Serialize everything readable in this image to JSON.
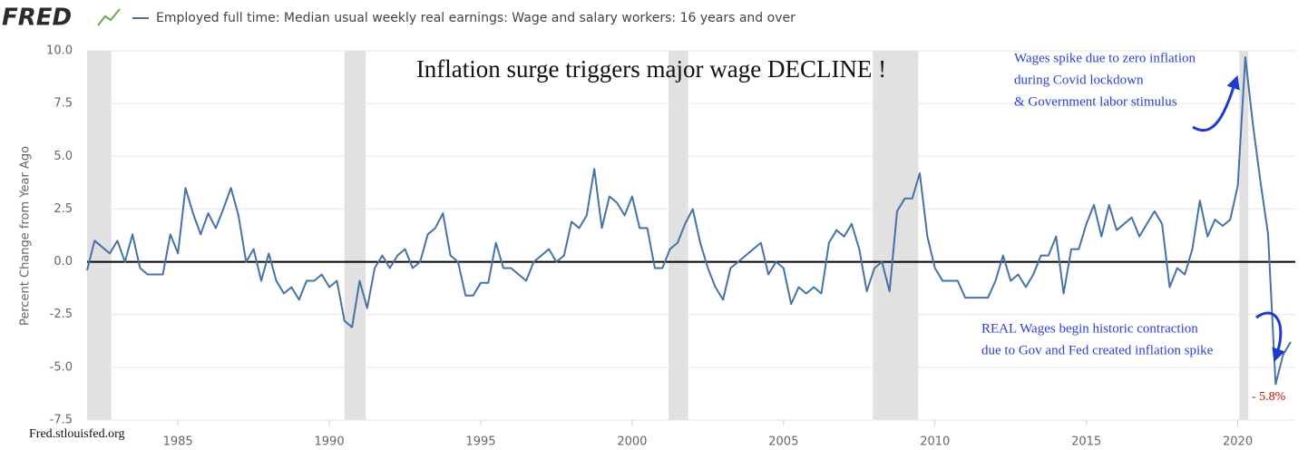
{
  "chart_data": {
    "type": "line",
    "logo": "FRED",
    "title": "Inflation surge triggers major wage DECLINE !",
    "y_label": "Percent Change from Year Ago",
    "source": "Fred.stlouisfed.org",
    "annotations": [
      "Wages spike due to zero inflation",
      "during Covid lockdown",
      "& Government labor stimulus",
      "REAL Wages begin historic contraction",
      "due to Gov and Fed created inflation spike",
      "- 5.8%"
    ],
    "xlim": [
      1982,
      2021.9
    ],
    "ylim": [
      -7.5,
      10
    ],
    "xticks": [
      1985,
      1990,
      1995,
      2000,
      2005,
      2010,
      2015,
      2020
    ],
    "yticks": [
      {
        "value": 10,
        "label": "10.0"
      },
      {
        "value": 7.5,
        "label": "7.5"
      },
      {
        "value": 5,
        "label": "5.0"
      },
      {
        "value": 2.5,
        "label": "2.5"
      },
      {
        "value": 0,
        "label": "0.0"
      },
      {
        "value": -2.5,
        "label": "-2.5"
      },
      {
        "value": -5,
        "label": "-5.0"
      },
      {
        "value": -7.5,
        "label": "-7.5"
      }
    ],
    "grid": true,
    "hline": 0,
    "recessions": [
      [
        1982,
        1982.8
      ],
      [
        1990.5,
        1991.2
      ],
      [
        2001.2,
        2001.85
      ],
      [
        2007.95,
        2009.45
      ],
      [
        2020.05,
        2020.35
      ]
    ],
    "recession_color": "#e1e1e1",
    "x": [
      1982,
      1982.25,
      1982.5,
      1982.75,
      1983,
      1983.25,
      1983.5,
      1983.75,
      1984,
      1984.25,
      1984.5,
      1984.75,
      1985,
      1985.25,
      1985.5,
      1985.75,
      1986,
      1986.25,
      1986.5,
      1986.75,
      1987,
      1987.25,
      1987.5,
      1987.75,
      1988,
      1988.25,
      1988.5,
      1988.75,
      1989,
      1989.25,
      1989.5,
      1989.75,
      1990,
      1990.25,
      1990.5,
      1990.75,
      1991,
      1991.25,
      1991.5,
      1991.75,
      1992,
      1992.25,
      1992.5,
      1992.75,
      1993,
      1993.25,
      1993.5,
      1993.75,
      1994,
      1994.25,
      1994.5,
      1994.75,
      1995,
      1995.25,
      1995.5,
      1995.75,
      1996,
      1996.25,
      1996.5,
      1996.75,
      1997,
      1997.25,
      1997.5,
      1997.75,
      1998,
      1998.25,
      1998.5,
      1998.75,
      1999,
      1999.25,
      1999.5,
      1999.75,
      2000,
      2000.25,
      2000.5,
      2000.75,
      2001,
      2001.25,
      2001.5,
      2001.75,
      2002,
      2002.25,
      2002.5,
      2002.75,
      2003,
      2003.25,
      2003.5,
      2003.75,
      2004,
      2004.25,
      2004.5,
      2004.75,
      2005,
      2005.25,
      2005.5,
      2005.75,
      2006,
      2006.25,
      2006.5,
      2006.75,
      2007,
      2007.25,
      2007.5,
      2007.75,
      2008,
      2008.25,
      2008.5,
      2008.75,
      2009,
      2009.25,
      2009.5,
      2009.75,
      2010,
      2010.25,
      2010.5,
      2010.75,
      2011,
      2011.25,
      2011.5,
      2011.75,
      2012,
      2012.25,
      2012.5,
      2012.75,
      2013,
      2013.25,
      2013.5,
      2013.75,
      2014,
      2014.25,
      2014.5,
      2014.75,
      2015,
      2015.25,
      2015.5,
      2015.75,
      2016,
      2016.25,
      2016.5,
      2016.75,
      2017,
      2017.25,
      2017.5,
      2017.75,
      2018,
      2018.25,
      2018.5,
      2018.75,
      2019,
      2019.25,
      2019.5,
      2019.75,
      2020,
      2020.25,
      2020.5,
      2020.75,
      2021,
      2021.25,
      2021.5,
      2021.75
    ],
    "series": [
      {
        "name": "Employed full time: Median usual weekly real earnings: Wage and salary workers: 16 years and over",
        "color": "#4572a7",
        "values": [
          -0.4,
          1.0,
          0.7,
          0.4,
          1.0,
          0.0,
          1.3,
          -0.3,
          -0.6,
          -0.6,
          -0.6,
          1.3,
          0.4,
          3.5,
          2.3,
          1.3,
          2.3,
          1.6,
          2.5,
          3.5,
          2.2,
          0.0,
          0.6,
          -0.9,
          0.4,
          -0.9,
          -1.5,
          -1.2,
          -1.8,
          -0.9,
          -0.9,
          -0.6,
          -1.2,
          -0.9,
          -2.8,
          -3.1,
          -0.9,
          -2.2,
          -0.3,
          0.3,
          -0.3,
          0.3,
          0.6,
          -0.3,
          0.0,
          1.3,
          1.6,
          2.3,
          0.3,
          0.0,
          -1.6,
          -1.6,
          -1.0,
          -1.0,
          0.9,
          -0.3,
          -0.3,
          -0.6,
          -0.9,
          0.0,
          0.3,
          0.6,
          0.0,
          0.3,
          1.9,
          1.6,
          2.2,
          4.4,
          1.6,
          3.1,
          2.8,
          2.2,
          3.1,
          1.6,
          1.6,
          -0.3,
          -0.3,
          0.6,
          0.9,
          1.8,
          2.5,
          0.9,
          -0.3,
          -1.2,
          -1.8,
          -0.3,
          0.0,
          0.3,
          0.6,
          0.9,
          -0.6,
          0.0,
          -0.3,
          -2.0,
          -1.2,
          -1.5,
          -1.2,
          -1.5,
          0.9,
          1.5,
          1.2,
          1.8,
          0.6,
          -1.4,
          -0.3,
          0.0,
          -1.4,
          2.4,
          3.0,
          3.0,
          4.2,
          1.2,
          -0.3,
          -0.9,
          -0.9,
          -0.9,
          -1.7,
          -1.7,
          -1.7,
          -1.7,
          -0.9,
          0.3,
          -0.9,
          -0.6,
          -1.2,
          -0.6,
          0.3,
          0.3,
          1.2,
          -1.5,
          0.6,
          0.6,
          1.8,
          2.7,
          1.2,
          2.7,
          1.5,
          1.8,
          2.1,
          1.2,
          1.8,
          2.4,
          1.8,
          -1.2,
          -0.3,
          -0.6,
          0.6,
          2.9,
          1.2,
          2.0,
          1.7,
          2.0,
          3.6,
          9.7,
          6.5,
          3.8,
          1.3,
          -5.8,
          -4.4,
          -3.8
        ]
      }
    ]
  }
}
